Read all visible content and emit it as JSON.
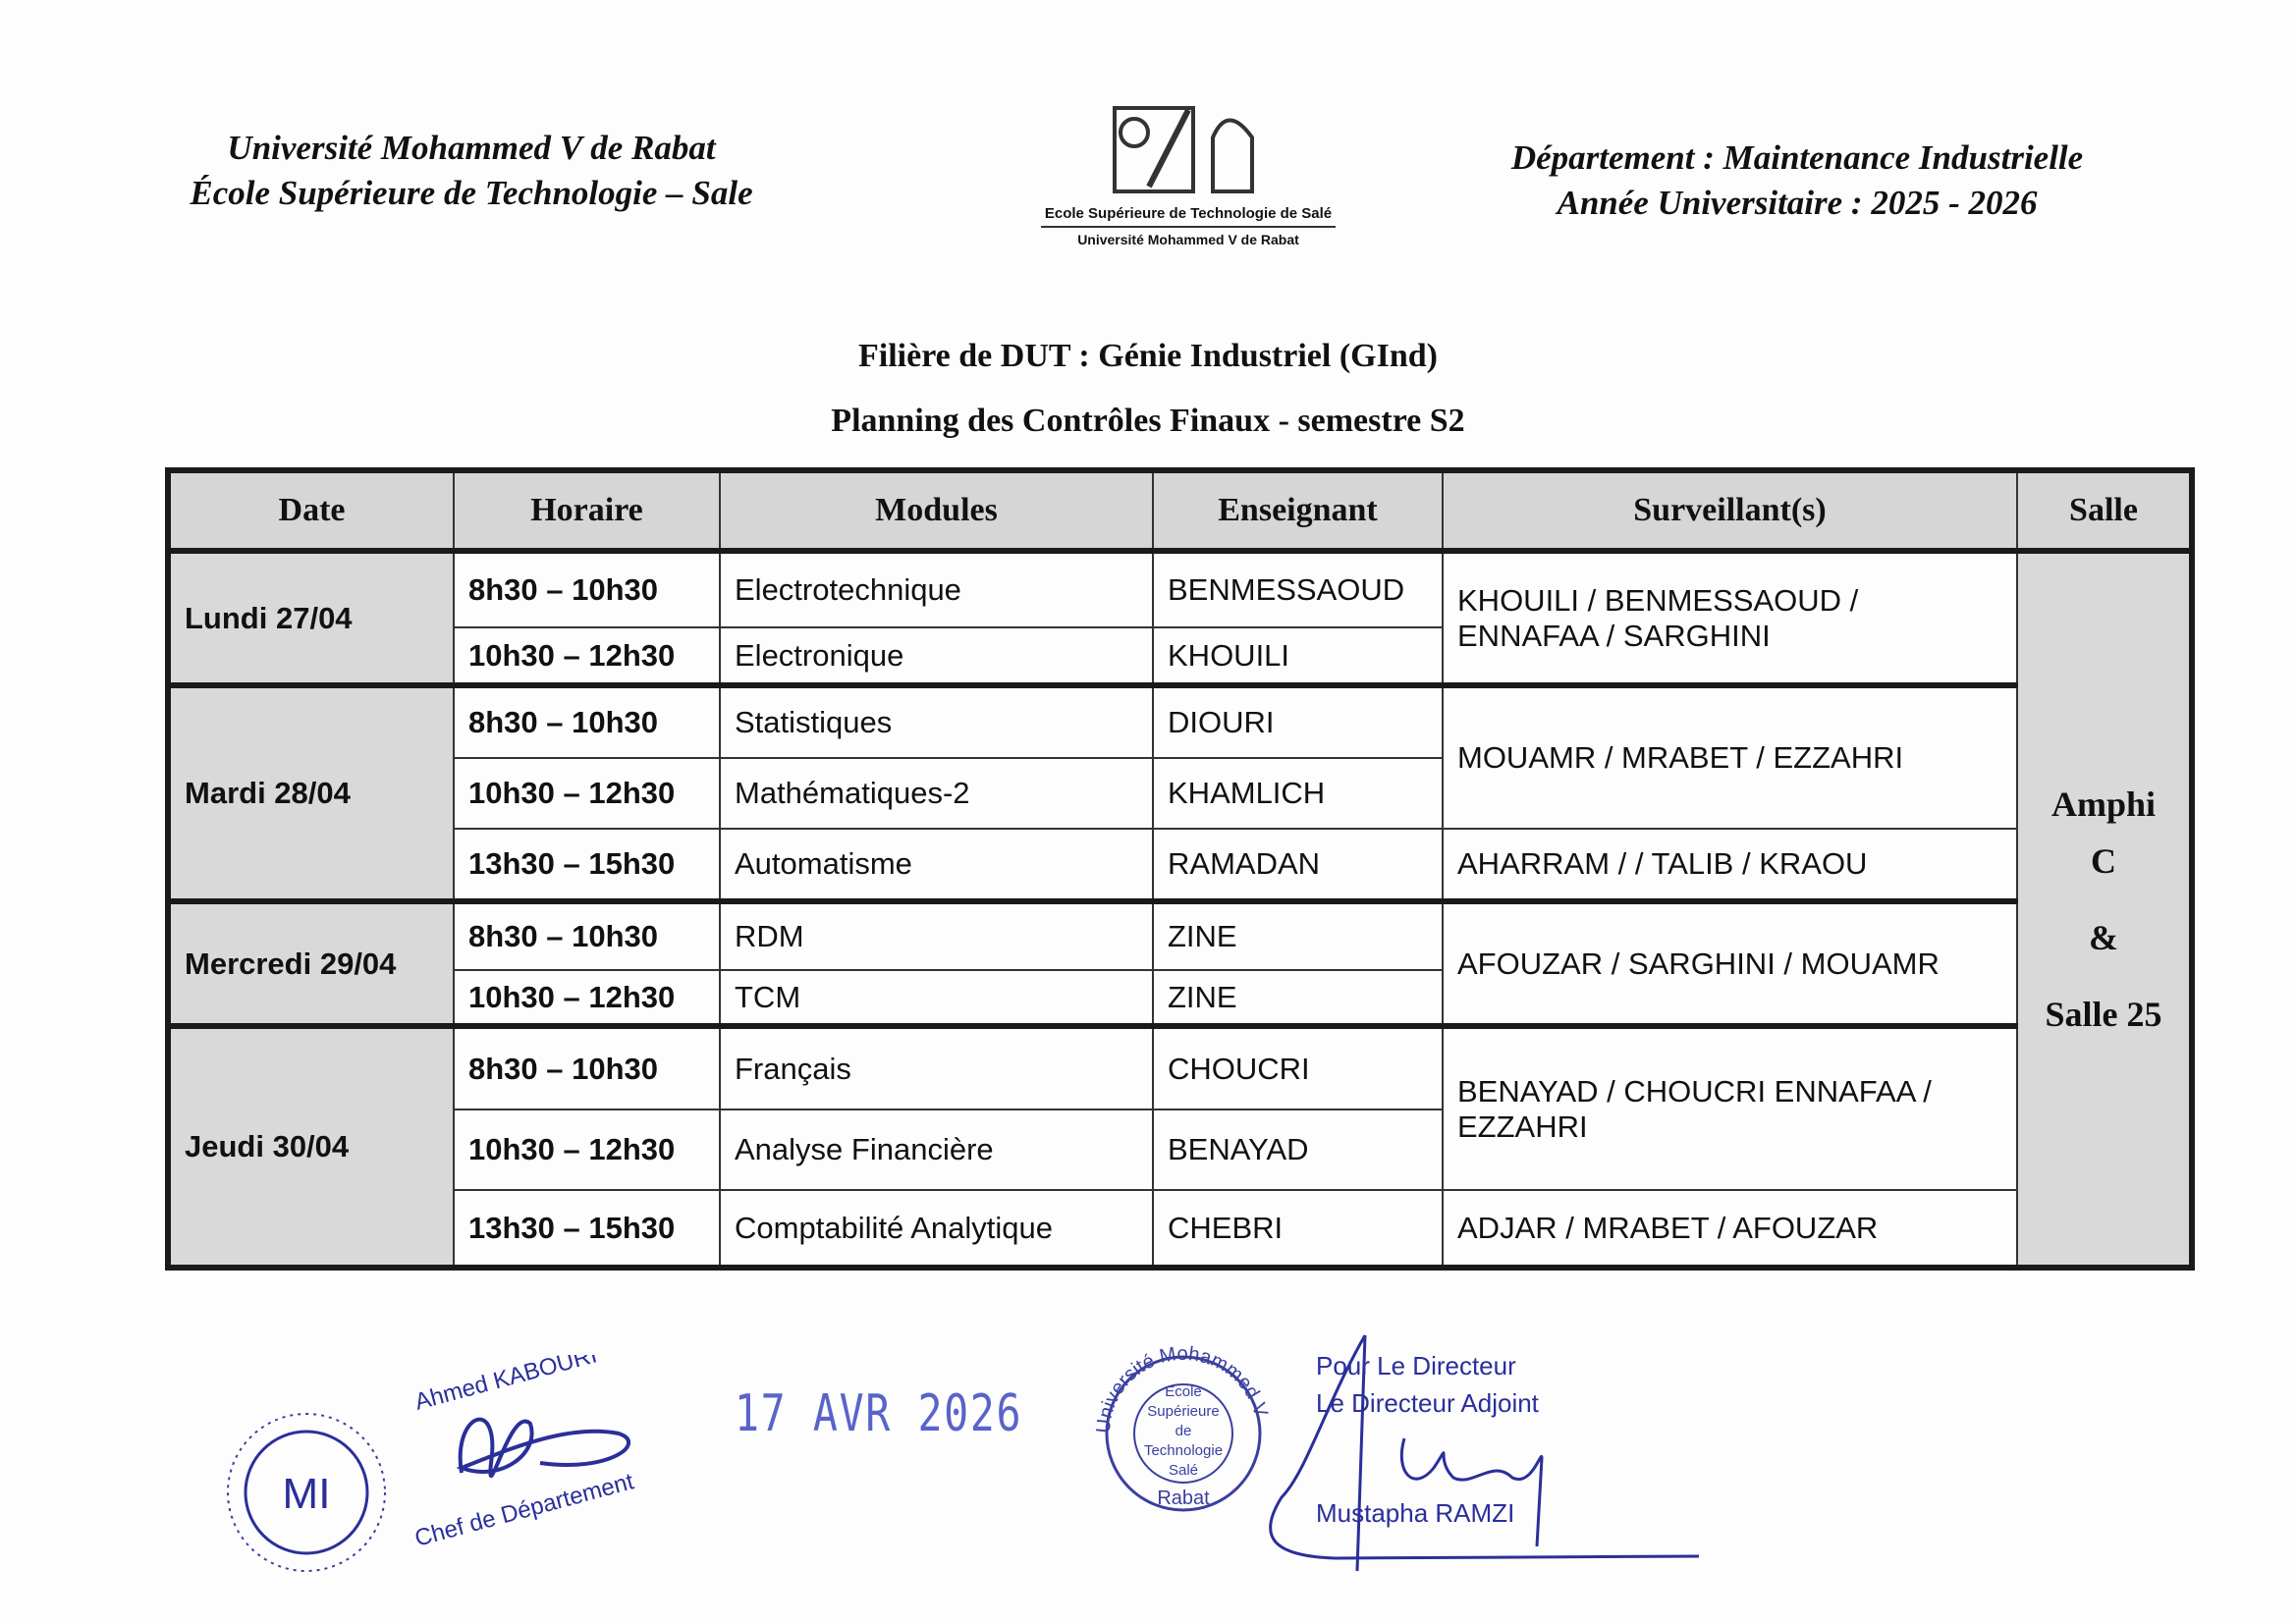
{
  "header": {
    "left": [
      "Université Mohammed V de Rabat",
      "École Supérieure de Technologie – Sale"
    ],
    "right": [
      "Département : Maintenance Industrielle",
      "Année Universitaire : 2025 - 2026"
    ],
    "logo": {
      "line1": "Ecole Supérieure de Technologie de Salé",
      "line2": "Université Mohammed V de Rabat"
    }
  },
  "titles": {
    "filiere": "Filière de DUT : Génie Industriel (GInd)",
    "planning": "Planning des Contrôles Finaux - semestre S2"
  },
  "table": {
    "columns": [
      "Date",
      "Horaire",
      "Modules",
      "Enseignant",
      "Surveillant(s)",
      "Salle"
    ],
    "salle": [
      "Amphi",
      "C",
      "&",
      "Salle 25"
    ],
    "days": [
      {
        "date": "Lundi 27/04",
        "rows": [
          {
            "time": "8h30 – 10h30",
            "module": "Electrotechnique",
            "teacher": "BENMESSAOUD"
          },
          {
            "time": "10h30 – 12h30",
            "module": "Electronique",
            "teacher": "KHOUILI"
          }
        ],
        "surv": [
          {
            "text": "KHOUILI / BENMESSAOUD / ENNAFAA / SARGHINI",
            "span": 2
          }
        ]
      },
      {
        "date": "Mardi 28/04",
        "rows": [
          {
            "time": "8h30 – 10h30",
            "module": "Statistiques",
            "teacher": "DIOURI"
          },
          {
            "time": "10h30 – 12h30",
            "module": "Mathématiques-2",
            "teacher": "KHAMLICH"
          },
          {
            "time": "13h30 – 15h30",
            "module": "Automatisme",
            "teacher": "RAMADAN"
          }
        ],
        "surv": [
          {
            "text": "MOUAMR / MRABET / EZZAHRI",
            "span": 2
          },
          {
            "text": "AHARRAM / / TALIB / KRAOU",
            "span": 1
          }
        ]
      },
      {
        "date": "Mercredi 29/04",
        "rows": [
          {
            "time": "8h30 – 10h30",
            "module": "RDM",
            "teacher": "ZINE"
          },
          {
            "time": "10h30 – 12h30",
            "module": "TCM",
            "teacher": "ZINE"
          }
        ],
        "surv": [
          {
            "text": "AFOUZAR / SARGHINI / MOUAMR",
            "span": 2
          }
        ]
      },
      {
        "date": "Jeudi 30/04",
        "rows": [
          {
            "time": "8h30 – 10h30",
            "module": "Français",
            "teacher": "CHOUCRI"
          },
          {
            "time": "10h30 – 12h30",
            "module": "Analyse Financière",
            "teacher": "BENAYAD"
          },
          {
            "time": "13h30 – 15h30",
            "module": "Comptabilité Analytique",
            "teacher": "CHEBRI"
          }
        ],
        "surv": [
          {
            "text": "BENAYAD / CHOUCRI ENNAFAA / EZZAHRI",
            "span": 2
          },
          {
            "text": "ADJAR / MRABET / AFOUZAR",
            "span": 1
          }
        ]
      }
    ]
  },
  "signatures": {
    "chef_name": "Ahmed KABOURI",
    "chef_title": "Chef de Département",
    "dept_stamp": "MI",
    "date_stamp": "17 AVR 2026",
    "school_stamp": {
      "ring": "Université Mohammed V",
      "bottom": "Rabat",
      "center": [
        "Ecole",
        "Supérieure",
        "de",
        "Technologie",
        "Salé"
      ]
    },
    "director": [
      "Pour Le Directeur",
      "Le Directeur Adjoint"
    ],
    "director_name": "Mustapha RAMZI"
  },
  "colors": {
    "ink_blue": "#2a2f9a",
    "stamp_blue": "#5a63c9",
    "cell_gray": "#d9d9d9"
  }
}
